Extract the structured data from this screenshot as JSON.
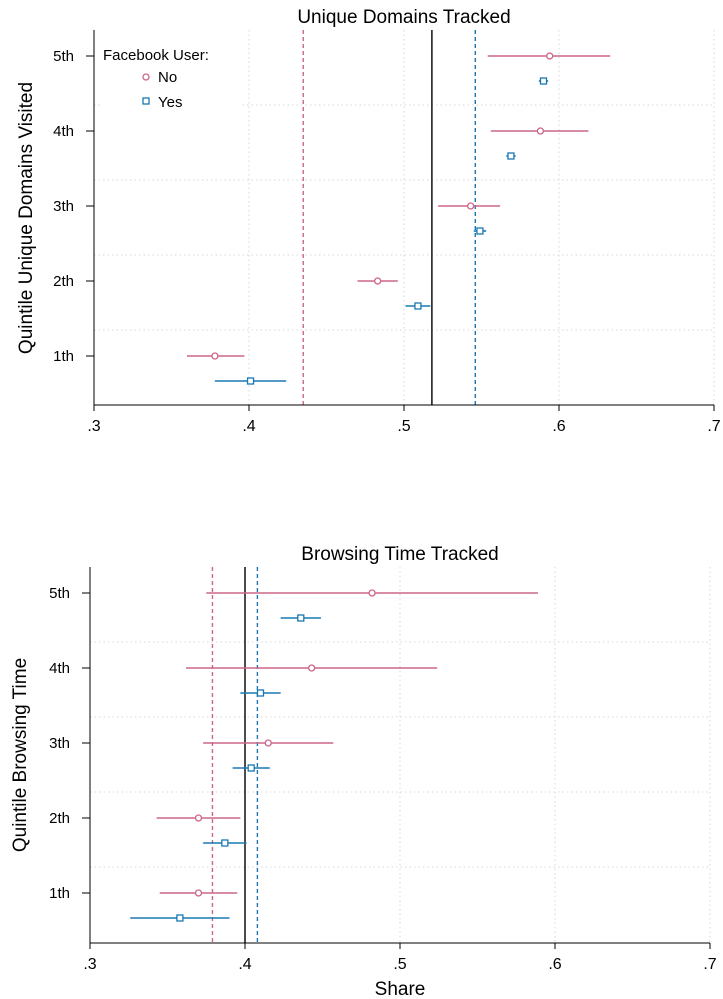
{
  "colors": {
    "no": "#cc6688",
    "yes": "#1a78b4",
    "overall": "#000000"
  },
  "legend": {
    "title": "Facebook User:",
    "items": [
      "No",
      "Yes"
    ]
  },
  "chart_data": [
    {
      "type": "scatter",
      "title": "Unique Domains Tracked",
      "xlabel": "",
      "ylabel": "Quintile Unique Domains Visited",
      "xlim": [
        0.3,
        0.7
      ],
      "xticks": [
        ".3",
        ".4",
        ".5",
        ".6",
        ".7"
      ],
      "categories": [
        "5th",
        "4th",
        "3th",
        "2th",
        "1th"
      ],
      "grid": true,
      "legend_position": "top-left",
      "reference_lines": {
        "no": 0.435,
        "overall": 0.518,
        "yes": 0.546
      },
      "series": [
        {
          "name": "No",
          "values": [
            0.594,
            0.588,
            0.543,
            0.483,
            0.378
          ],
          "ci_low": [
            0.554,
            0.556,
            0.522,
            0.47,
            0.36
          ],
          "ci_high": [
            0.633,
            0.619,
            0.562,
            0.496,
            0.397
          ]
        },
        {
          "name": "Yes",
          "values": [
            0.59,
            0.569,
            0.549,
            0.509,
            0.401
          ],
          "ci_low": [
            0.587,
            0.566,
            0.545,
            0.501,
            0.378
          ],
          "ci_high": [
            0.593,
            0.572,
            0.553,
            0.517,
            0.424
          ]
        }
      ]
    },
    {
      "type": "scatter",
      "title": "Browsing Time Tracked",
      "xlabel": "Share",
      "ylabel": "Quintile Browsing Time",
      "xlim": [
        0.3,
        0.7
      ],
      "xticks": [
        ".3",
        ".4",
        ".5",
        ".6",
        ".7"
      ],
      "categories": [
        "5th",
        "4th",
        "3th",
        "2th",
        "1th"
      ],
      "grid": true,
      "reference_lines": {
        "no": 0.379,
        "overall": 0.4,
        "yes": 0.408
      },
      "series": [
        {
          "name": "No",
          "values": [
            0.482,
            0.443,
            0.415,
            0.37,
            0.37
          ],
          "ci_low": [
            0.375,
            0.362,
            0.373,
            0.343,
            0.345
          ],
          "ci_high": [
            0.589,
            0.524,
            0.457,
            0.397,
            0.395
          ]
        },
        {
          "name": "Yes",
          "values": [
            0.436,
            0.41,
            0.404,
            0.387,
            0.358
          ],
          "ci_low": [
            0.423,
            0.397,
            0.392,
            0.373,
            0.326
          ],
          "ci_high": [
            0.449,
            0.423,
            0.416,
            0.401,
            0.39
          ]
        }
      ]
    }
  ]
}
